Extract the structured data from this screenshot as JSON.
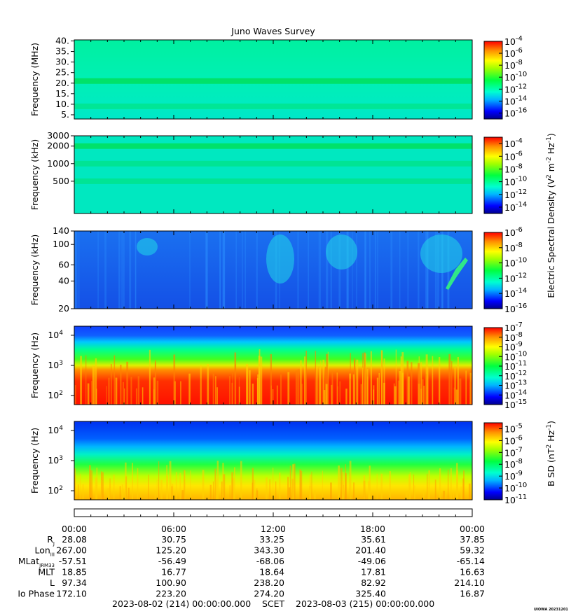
{
  "chart_data": {
    "title": "Juno Waves Survey",
    "type": "heatmap",
    "panels": [
      {
        "ylabel": "Frequency (MHz)",
        "yscale": "linear",
        "ylim": [
          3,
          40.5
        ],
        "yticks": [
          "40.",
          "35.",
          "30.",
          "25.",
          "20.",
          "15.",
          "10.",
          "5."
        ],
        "ytick_values": [
          40,
          35,
          30,
          25,
          20,
          15,
          10,
          5
        ],
        "colorbar": {
          "ticks": [
            "-4",
            "-6",
            "-8",
            "-10",
            "-12",
            "-14",
            "-16"
          ],
          "range": [
            -17,
            -4
          ]
        },
        "bands": [
          {
            "value": 21,
            "note": ""
          },
          {
            "value": 9
          }
        ]
      },
      {
        "ylabel": "Frequency (kHz)",
        "yscale": "log",
        "ylim": [
          140,
          3000
        ],
        "yticks": [
          "3000",
          "2000",
          "1000",
          "500"
        ],
        "ytick_values": [
          3000,
          2000,
          1000,
          500
        ],
        "colorbar": {
          "ticks": [
            "-4",
            "-6",
            "-8",
            "-10",
            "-12",
            "-14"
          ],
          "range": [
            -15,
            -3
          ]
        },
        "bands": [
          {
            "value": 2000
          },
          {
            "value": 1000
          },
          {
            "value": 500
          }
        ]
      },
      {
        "ylabel": "Frequency (kHz)",
        "yscale": "log",
        "ylim": [
          20,
          140
        ],
        "yticks": [
          "140",
          "100",
          "60",
          "40",
          "20"
        ],
        "ytick_values": [
          140,
          100,
          60,
          40,
          20
        ],
        "colorbar": {
          "ticks": [
            "-6",
            "-8",
            "-10",
            "-12",
            "-14",
            "-16"
          ],
          "range": [
            -16,
            -6
          ]
        }
      },
      {
        "ylabel": "Frequency (Hz)",
        "yscale": "log",
        "ylim": [
          50,
          20000
        ],
        "yticks": [
          {
            "base": "10",
            "exp": "4",
            "value": 10000
          },
          {
            "base": "10",
            "exp": "3",
            "value": 1000
          },
          {
            "base": "10",
            "exp": "2",
            "value": 100
          }
        ],
        "colorbar": {
          "ticks": [
            "-7",
            "-8",
            "-9",
            "-10",
            "-11",
            "-12",
            "-13",
            "-14",
            "-15"
          ],
          "range": [
            -15,
            -7
          ]
        }
      },
      {
        "ylabel": "Frequency (Hz)",
        "yscale": "log",
        "ylim": [
          50,
          20000
        ],
        "yticks": [
          {
            "base": "10",
            "exp": "4",
            "value": 10000
          },
          {
            "base": "10",
            "exp": "3",
            "value": 1000
          },
          {
            "base": "10",
            "exp": "2",
            "value": 100
          }
        ],
        "colorbar": {
          "ticks": [
            "-5",
            "-6",
            "-7",
            "-8",
            "-9",
            "-10",
            "-11"
          ],
          "range": [
            -11,
            -4.5
          ]
        }
      }
    ],
    "electric_colorbar_label": "Electric Spectral Density (V² m⁻² Hz⁻¹)",
    "electric_colorbar_parts": {
      "a": "Electric Spectral Density (V",
      "b": "2",
      "c": " m",
      "d": "-2",
      "e": " Hz",
      "f": "-1",
      "g": ")"
    },
    "magnetic_colorbar_label": "B SD (nT² Hz⁻¹)",
    "magnetic_colorbar_parts": {
      "a": "B SD (nT",
      "b": "2",
      "c": " Hz",
      "d": "-1",
      "e": ")"
    },
    "colorbar_base": "10",
    "x": {
      "ticks": [
        "00:00",
        "06:00",
        "12:00",
        "18:00",
        "00:00"
      ],
      "range_hours": [
        0,
        24
      ]
    },
    "ephemeris": {
      "rows": [
        {
          "label": "R",
          "sub": "J",
          "values": [
            "28.08",
            "30.75",
            "33.25",
            "35.61",
            "37.85"
          ]
        },
        {
          "label": "Lon",
          "sub": "III",
          "values": [
            "267.00",
            "125.20",
            "343.30",
            "201.40",
            "59.32"
          ]
        },
        {
          "label": "MLat",
          "sub": "JRM33",
          "values": [
            "-57.51",
            "-56.49",
            "-68.06",
            "-49.06",
            "-65.14"
          ]
        },
        {
          "label": "MLT",
          "sub": "",
          "values": [
            "18.85",
            "16.77",
            "18.64",
            "17.81",
            "16.63"
          ]
        },
        {
          "label": "L",
          "sub": "",
          "values": [
            "97.34",
            "100.90",
            "238.20",
            "82.92",
            "214.10"
          ]
        },
        {
          "label": "Io Phase",
          "sub": "",
          "values": [
            "172.10",
            "223.20",
            "274.20",
            "325.40",
            "16.87"
          ]
        }
      ]
    },
    "footer": {
      "start": "2023-08-02 (214) 00:00:00.000",
      "scet": "SCET",
      "end": "2023-08-03 (215) 00:00:00.000"
    },
    "stamp": "UIOWA 20231201"
  }
}
